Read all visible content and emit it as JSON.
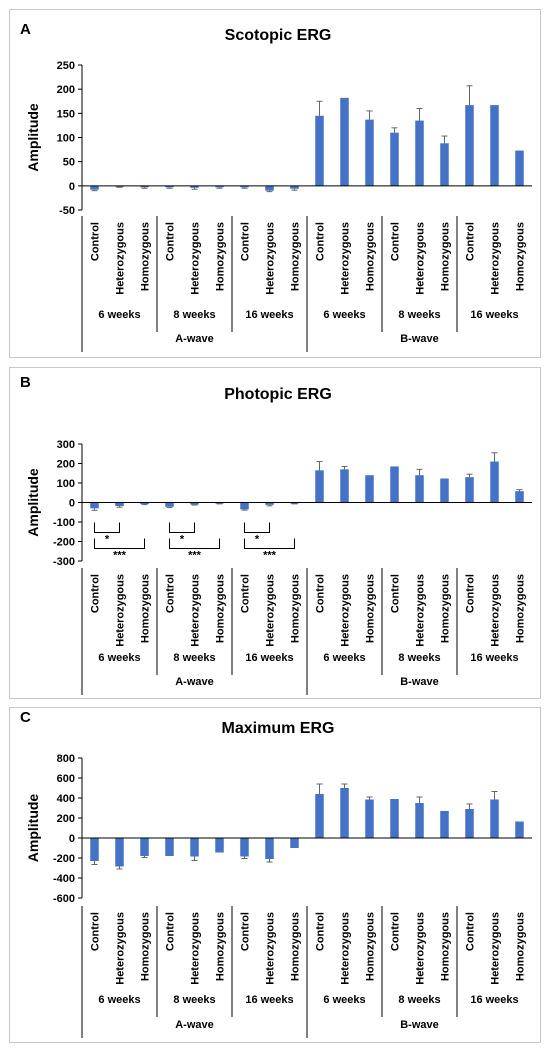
{
  "chart_data": [
    {
      "panel_label": "A",
      "type": "bar",
      "title": "Scotopic ERG",
      "ylabel": "Amplitude",
      "ylim": [
        -50,
        250
      ],
      "yticks": [
        -50,
        0,
        50,
        100,
        150,
        200,
        250
      ],
      "categories": [
        "Control",
        "Heterozygous",
        "Homozygous",
        "Control",
        "Heterozygous",
        "Homozygous",
        "Control",
        "Heterozygous",
        "Homozygous",
        "Control",
        "Heterozygous",
        "Homozygous",
        "Control",
        "Heterozygous",
        "Homozygous",
        "Control",
        "Heterozygous",
        "Homozygous"
      ],
      "time_groups": [
        "6 weeks",
        "8 weeks",
        "16 weeks",
        "6 weeks",
        "8 weeks",
        "16 weeks"
      ],
      "wave_groups": [
        "A-wave",
        "B-wave"
      ],
      "values": [
        -8,
        -2,
        -3,
        -3,
        -4,
        -3,
        -3,
        -10,
        -6,
        145,
        182,
        137,
        110,
        135,
        88,
        167,
        167,
        73
      ],
      "errors": [
        2,
        1,
        2,
        2,
        3,
        2,
        2,
        2,
        3,
        30,
        0,
        18,
        10,
        25,
        15,
        40,
        0,
        0
      ],
      "significance": []
    },
    {
      "panel_label": "B",
      "type": "bar",
      "title": "Photopic ERG",
      "ylabel": "Amplitude",
      "ylim": [
        -300,
        300
      ],
      "yticks": [
        -300,
        -200,
        -100,
        0,
        100,
        200,
        300
      ],
      "categories": [
        "Control",
        "Heterozygous",
        "Homozygous",
        "Control",
        "Heterozygous",
        "Homozygous",
        "Control",
        "Heterozygous",
        "Homozygous",
        "Control",
        "Heterozygous",
        "Homozygous",
        "Control",
        "Heterozygous",
        "Homozygous",
        "Control",
        "Heterozygous",
        "Homozygous"
      ],
      "time_groups": [
        "6 weeks",
        "8 weeks",
        "16 weeks",
        "6 weeks",
        "8 weeks",
        "16 weeks"
      ],
      "wave_groups": [
        "A-wave",
        "B-wave"
      ],
      "values": [
        -30,
        -18,
        -8,
        -22,
        -10,
        -5,
        -35,
        -12,
        -5,
        165,
        170,
        140,
        185,
        140,
        123,
        130,
        210,
        58
      ],
      "errors": [
        10,
        6,
        3,
        4,
        3,
        2,
        4,
        5,
        2,
        45,
        15,
        0,
        0,
        30,
        0,
        15,
        45,
        8
      ],
      "significance": [
        {
          "from": 0,
          "to": 1,
          "label": "*"
        },
        {
          "from": 0,
          "to": 2,
          "label": "***"
        },
        {
          "from": 3,
          "to": 4,
          "label": "*"
        },
        {
          "from": 3,
          "to": 5,
          "label": "***"
        },
        {
          "from": 6,
          "to": 7,
          "label": "*"
        },
        {
          "from": 6,
          "to": 8,
          "label": "***"
        }
      ]
    },
    {
      "panel_label": "C",
      "type": "bar",
      "title": "Maximum ERG",
      "ylabel": "Amplitude",
      "ylim": [
        -600,
        800
      ],
      "yticks": [
        -600,
        -400,
        -200,
        0,
        200,
        400,
        600,
        800
      ],
      "categories": [
        "Control",
        "Heterozygous",
        "Homozygous",
        "Control",
        "Heterozygous",
        "Homozygous",
        "Control",
        "Heterozygous",
        "Homozygous",
        "Control",
        "Heterozygous",
        "Homozygous",
        "Control",
        "Heterozygous",
        "Homozygous",
        "Control",
        "Heterozygous",
        "Homozygous"
      ],
      "time_groups": [
        "6 weeks",
        "8 weeks",
        "16 weeks",
        "6 weeks",
        "8 weeks",
        "16 weeks"
      ],
      "wave_groups": [
        "A-wave",
        "B-wave"
      ],
      "values": [
        -230,
        -285,
        -180,
        -180,
        -185,
        -145,
        -185,
        -210,
        -100,
        440,
        500,
        385,
        390,
        350,
        270,
        290,
        385,
        165
      ],
      "errors": [
        35,
        25,
        15,
        0,
        40,
        0,
        20,
        30,
        0,
        100,
        40,
        25,
        0,
        60,
        0,
        50,
        80,
        0
      ],
      "significance": []
    }
  ]
}
